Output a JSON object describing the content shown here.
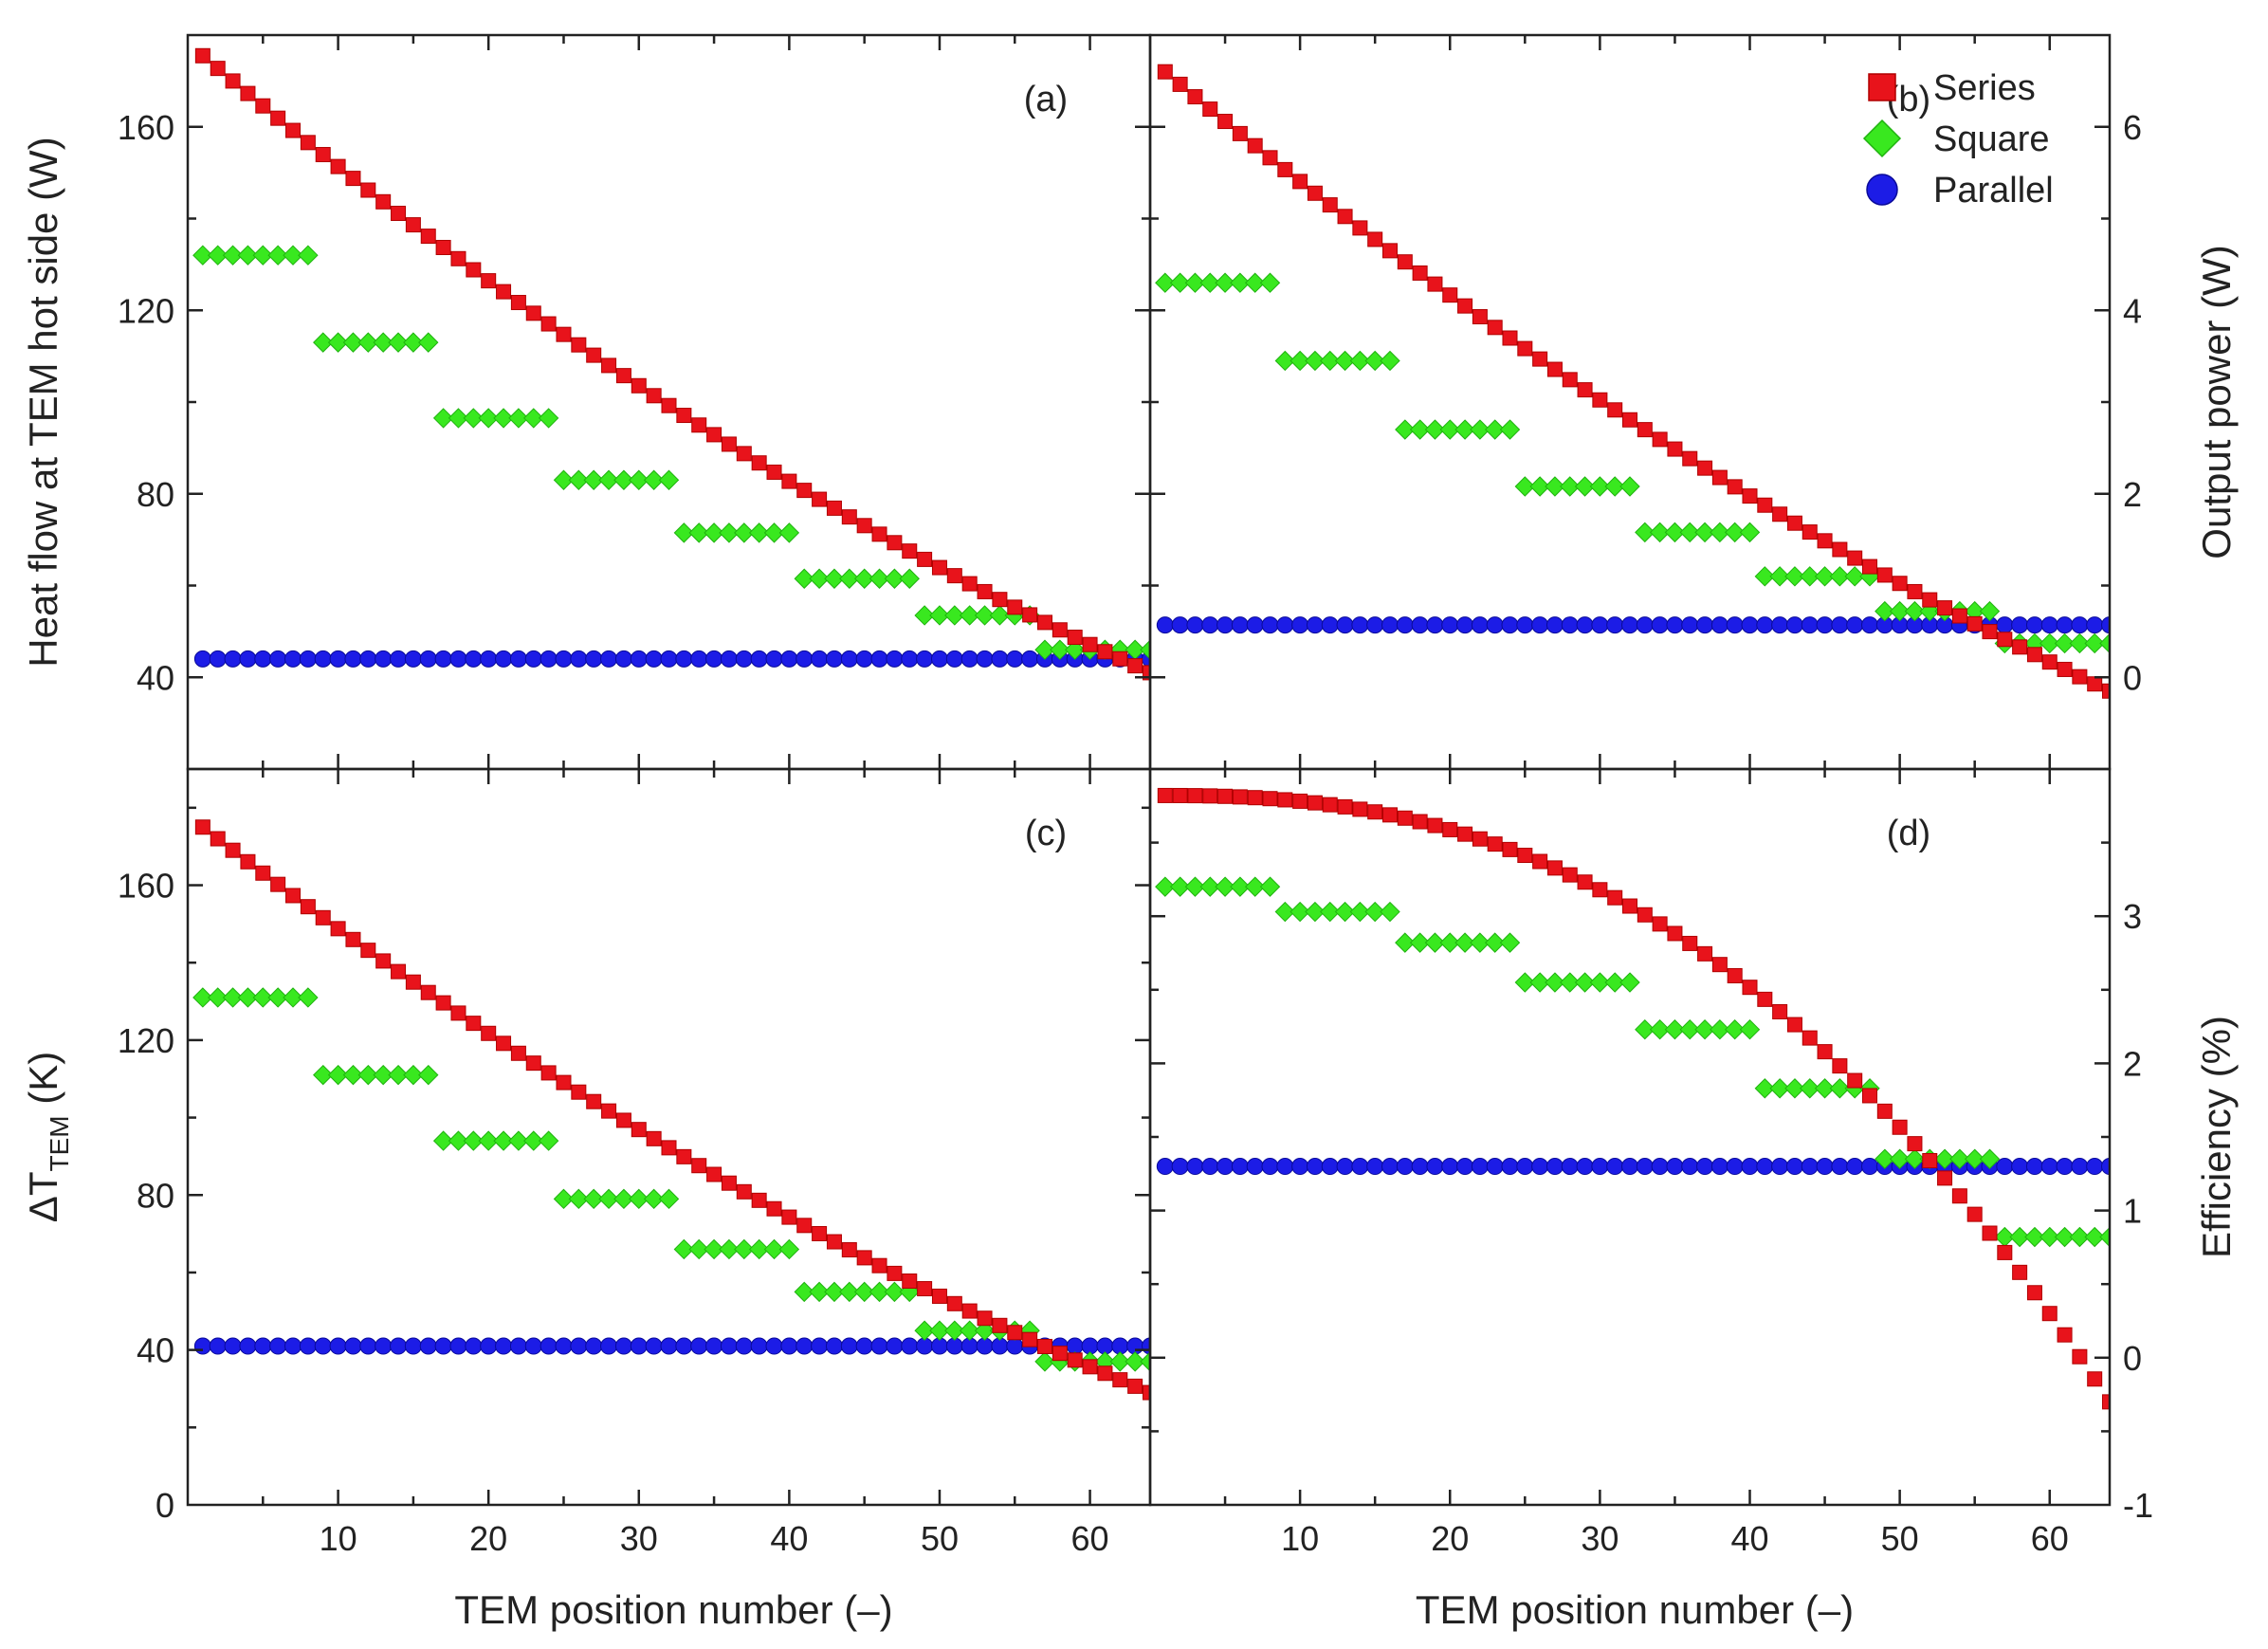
{
  "figure": {
    "xlabel": "TEM position number (–)",
    "legend": [
      {
        "name": "Series",
        "marker": "square",
        "color": "#e8131b"
      },
      {
        "name": "Square",
        "marker": "diamond",
        "color": "#39e81f"
      },
      {
        "name": "Parallel",
        "marker": "circle",
        "color": "#1c1ce6"
      }
    ]
  },
  "chart_data": [
    {
      "id": "a",
      "label": "(a)",
      "type": "scatter",
      "ylabel": "Heat flow at TEM hot side (W)",
      "ylabel_side": "left",
      "xlim": [
        0,
        64
      ],
      "ylim": [
        20,
        180
      ],
      "xticks": [
        10,
        20,
        30,
        40,
        50,
        60
      ],
      "xticklabels": [
        "10",
        "20",
        "30",
        "40",
        "50",
        "60"
      ],
      "show_xticklabels": false,
      "yticks": [
        40,
        80,
        120,
        160
      ],
      "yticklabels": [
        "40",
        "80",
        "120",
        "160"
      ],
      "ytick_side": "left",
      "series": [
        {
          "name": "Series",
          "model": "poly",
          "x": [
            1,
            64
          ],
          "y0": 175.5,
          "y1": 41,
          "curvature": 0.3
        },
        {
          "name": "Square",
          "model": "steps",
          "x": [
            1,
            64
          ],
          "steps": [
            132,
            113,
            96.5,
            83,
            71.5,
            61.5,
            53.5,
            46
          ]
        },
        {
          "name": "Parallel",
          "model": "const",
          "x": [
            1,
            64
          ],
          "value": 44
        }
      ]
    },
    {
      "id": "b",
      "label": "(b)",
      "type": "scatter",
      "ylabel": "Output power (W)",
      "ylabel_side": "right",
      "xlim": [
        0,
        64
      ],
      "ylim": [
        -1,
        7
      ],
      "xticks": [
        10,
        20,
        30,
        40,
        50,
        60
      ],
      "xticklabels": [
        "10",
        "20",
        "30",
        "40",
        "50",
        "60"
      ],
      "show_xticklabels": false,
      "yticks": [
        0,
        2,
        4,
        6
      ],
      "yticklabels": [
        "0",
        "2",
        "4",
        "6"
      ],
      "ytick_side": "right",
      "series": [
        {
          "name": "Series",
          "model": "poly",
          "x": [
            1,
            64
          ],
          "y0": 6.6,
          "y1": -0.15,
          "curvature": 0.28
        },
        {
          "name": "Square",
          "model": "steps",
          "x": [
            1,
            64
          ],
          "steps": [
            4.3,
            3.45,
            2.7,
            2.08,
            1.58,
            1.1,
            0.72,
            0.37
          ]
        },
        {
          "name": "Parallel",
          "model": "const",
          "x": [
            1,
            64
          ],
          "value": 0.57
        }
      ]
    },
    {
      "id": "c",
      "label": "(c)",
      "type": "scatter",
      "ylabel": "ΔT",
      "ylabel_sub": "TEM",
      "ylabel_unit": "(K)",
      "ylabel_side": "left",
      "xlim": [
        0,
        64
      ],
      "ylim": [
        0,
        190
      ],
      "xticks": [
        10,
        20,
        30,
        40,
        50,
        60
      ],
      "xticklabels": [
        "10",
        "20",
        "30",
        "40",
        "50",
        "60"
      ],
      "show_xticklabels": true,
      "yticks": [
        0,
        40,
        80,
        120,
        160
      ],
      "yticklabels": [
        "0",
        "40",
        "80",
        "120",
        "160"
      ],
      "ytick_side": "left",
      "series": [
        {
          "name": "Series",
          "model": "poly",
          "x": [
            1,
            64
          ],
          "y0": 175,
          "y1": 29,
          "curvature": 0.3
        },
        {
          "name": "Square",
          "model": "steps",
          "x": [
            1,
            64
          ],
          "steps": [
            131,
            111,
            94,
            79,
            66,
            55,
            45,
            37
          ]
        },
        {
          "name": "Parallel",
          "model": "const",
          "x": [
            1,
            64
          ],
          "value": 41
        }
      ]
    },
    {
      "id": "d",
      "label": "(d)",
      "type": "scatter",
      "ylabel": "Efficiency (%)",
      "ylabel_side": "right",
      "xlim": [
        0,
        64
      ],
      "ylim": [
        -1,
        4
      ],
      "xticks": [
        10,
        20,
        30,
        40,
        50,
        60
      ],
      "xticklabels": [
        "10",
        "20",
        "30",
        "40",
        "50",
        "60"
      ],
      "show_xticklabels": true,
      "yticks": [
        -1,
        0,
        1,
        2,
        3
      ],
      "yticklabels": [
        "-1",
        "0",
        "1",
        "2",
        "3"
      ],
      "ytick_side": "right",
      "series": [
        {
          "name": "Series",
          "model": "power",
          "x": [
            1,
            64
          ],
          "y0": 3.82,
          "y1": -0.3,
          "exponent": 2.4
        },
        {
          "name": "Square",
          "model": "steps",
          "x": [
            1,
            64
          ],
          "steps": [
            3.2,
            3.03,
            2.82,
            2.55,
            2.23,
            1.83,
            1.35,
            0.82
          ]
        },
        {
          "name": "Parallel",
          "model": "const",
          "x": [
            1,
            64
          ],
          "value": 1.3
        }
      ]
    }
  ]
}
